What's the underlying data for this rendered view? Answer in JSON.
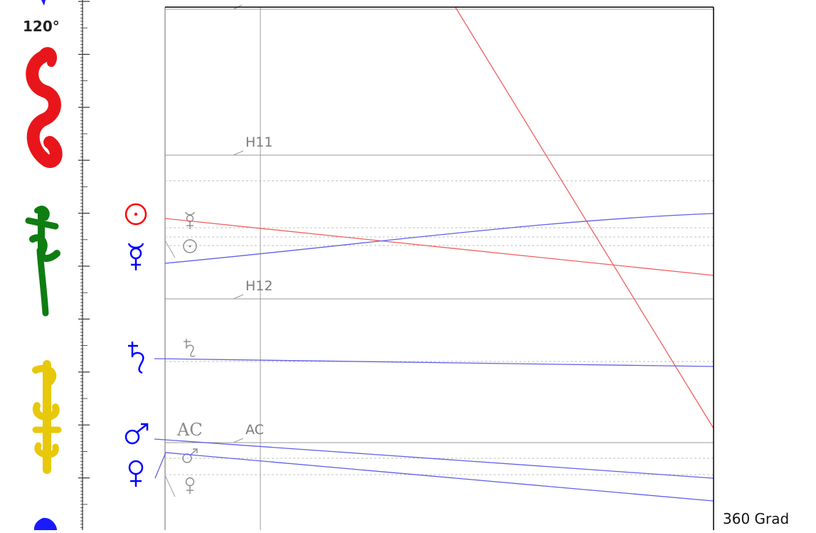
{
  "scale": {
    "degree_label": "120°"
  },
  "zodiac_signs": [
    {
      "name": "leo",
      "glyph": "♌",
      "color": "#e8161b"
    },
    {
      "name": "virgo",
      "glyph": "♍",
      "color": "#0e7d12"
    },
    {
      "name": "libra",
      "glyph": "♎",
      "color": "#e8c80a"
    },
    {
      "name": "scorpio",
      "glyph": "♏",
      "color": "#1a1aff"
    }
  ],
  "planets": [
    {
      "name": "sun",
      "glyph": "☉",
      "color": "#ff0000",
      "small_glyph": "☿"
    },
    {
      "name": "mercury",
      "glyph": "☿",
      "color": "#0000ff",
      "small_glyph": "☉"
    },
    {
      "name": "saturn",
      "glyph": "♄",
      "color": "#0000ff",
      "small_glyph": "♄"
    },
    {
      "name": "mars",
      "glyph": "♂",
      "color": "#0000ff",
      "small_glyph": "♂"
    },
    {
      "name": "venus",
      "glyph": "♀",
      "color": "#0000ff",
      "small_glyph": "♀"
    }
  ],
  "house_labels": {
    "h11": "H11",
    "h12": "H12",
    "ac": "AC",
    "ac_serif": "AC"
  },
  "footer": {
    "range_label": "360 Grad"
  },
  "colors": {
    "grid": "#a0a0a0",
    "red_line": "#f06060",
    "blue_line": "#6060e8",
    "frame": "#000000"
  }
}
